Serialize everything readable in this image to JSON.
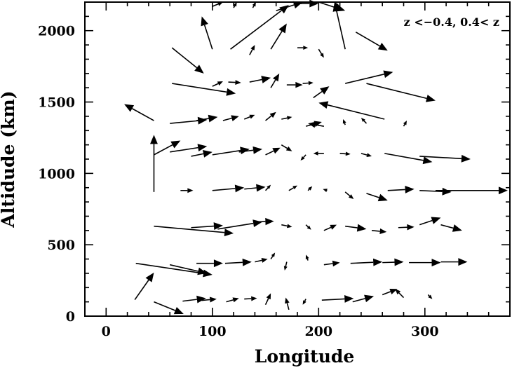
{
  "chart_data": {
    "type": "vector-field",
    "xlabel": "Longitude",
    "ylabel": "Altidude (km)",
    "annotation": "z <−0.4, 0.4< z",
    "xlim": [
      -20,
      380
    ],
    "ylim": [
      0,
      2200
    ],
    "xticks": [
      0,
      100,
      200,
      300
    ],
    "yticks": [
      0,
      500,
      1000,
      1500,
      2000
    ],
    "grid": false,
    "vectors": [
      {
        "x": 27,
        "y": 115,
        "dx": 18,
        "dy": 190
      },
      {
        "x": 45,
        "y": 100,
        "dx": 28,
        "dy": -85
      },
      {
        "x": 72,
        "y": 105,
        "dx": 22,
        "dy": 20
      },
      {
        "x": 90,
        "y": 110,
        "dx": 14,
        "dy": 10
      },
      {
        "x": 113,
        "y": 100,
        "dx": 12,
        "dy": 25
      },
      {
        "x": 130,
        "y": 120,
        "dx": 12,
        "dy": 5
      },
      {
        "x": 150,
        "y": 80,
        "dx": 5,
        "dy": 80
      },
      {
        "x": 172,
        "y": 45,
        "dx": -3,
        "dy": 85
      },
      {
        "x": 188,
        "y": 120,
        "dx": -3,
        "dy": -40
      },
      {
        "x": 203,
        "y": 112,
        "dx": 30,
        "dy": 12
      },
      {
        "x": 232,
        "y": 100,
        "dx": 20,
        "dy": 40
      },
      {
        "x": 260,
        "y": 150,
        "dx": 14,
        "dy": 40
      },
      {
        "x": 280,
        "y": 130,
        "dx": -8,
        "dy": 60
      },
      {
        "x": 303,
        "y": 150,
        "dx": 4,
        "dy": -30
      },
      {
        "x": 28,
        "y": 370,
        "dx": 72,
        "dy": -80
      },
      {
        "x": 60,
        "y": 360,
        "dx": 35,
        "dy": -60
      },
      {
        "x": 85,
        "y": 370,
        "dx": 25,
        "dy": 0
      },
      {
        "x": 112,
        "y": 370,
        "dx": 25,
        "dy": 10
      },
      {
        "x": 140,
        "y": 380,
        "dx": 12,
        "dy": 20
      },
      {
        "x": 155,
        "y": 400,
        "dx": 4,
        "dy": 45
      },
      {
        "x": 170,
        "y": 380,
        "dx": -2,
        "dy": -60
      },
      {
        "x": 190,
        "y": 390,
        "dx": -2,
        "dy": 40
      },
      {
        "x": 205,
        "y": 360,
        "dx": 15,
        "dy": 15
      },
      {
        "x": 230,
        "y": 370,
        "dx": 30,
        "dy": 10
      },
      {
        "x": 260,
        "y": 375,
        "dx": 20,
        "dy": 5
      },
      {
        "x": 285,
        "y": 375,
        "dx": 30,
        "dy": 0
      },
      {
        "x": 315,
        "y": 380,
        "dx": 25,
        "dy": 0
      },
      {
        "x": 45,
        "y": 630,
        "dx": 75,
        "dy": -50
      },
      {
        "x": 80,
        "y": 620,
        "dx": 30,
        "dy": 15
      },
      {
        "x": 105,
        "y": 610,
        "dx": 42,
        "dy": 50
      },
      {
        "x": 140,
        "y": 660,
        "dx": 18,
        "dy": 5
      },
      {
        "x": 165,
        "y": 640,
        "dx": 10,
        "dy": -15
      },
      {
        "x": 188,
        "y": 640,
        "dx": 5,
        "dy": -35
      },
      {
        "x": 205,
        "y": 600,
        "dx": 12,
        "dy": 40
      },
      {
        "x": 225,
        "y": 630,
        "dx": 20,
        "dy": -20
      },
      {
        "x": 250,
        "y": 600,
        "dx": 14,
        "dy": -10
      },
      {
        "x": 275,
        "y": 620,
        "dx": 15,
        "dy": 5
      },
      {
        "x": 295,
        "y": 640,
        "dx": 20,
        "dy": 50
      },
      {
        "x": 315,
        "y": 640,
        "dx": 20,
        "dy": -40
      },
      {
        "x": 45,
        "y": 870,
        "dx": 0,
        "dy": 400
      },
      {
        "x": 45,
        "y": 1130,
        "dx": 25,
        "dy": 100
      },
      {
        "x": 70,
        "y": 880,
        "dx": 12,
        "dy": 0
      },
      {
        "x": 100,
        "y": 880,
        "dx": 30,
        "dy": 20
      },
      {
        "x": 130,
        "y": 890,
        "dx": 20,
        "dy": 15
      },
      {
        "x": 150,
        "y": 880,
        "dx": 5,
        "dy": 40
      },
      {
        "x": 172,
        "y": 880,
        "dx": 8,
        "dy": 35
      },
      {
        "x": 190,
        "y": 880,
        "dx": 4,
        "dy": 30
      },
      {
        "x": 208,
        "y": 880,
        "dx": -4,
        "dy": 10
      },
      {
        "x": 225,
        "y": 870,
        "dx": 8,
        "dy": -50
      },
      {
        "x": 245,
        "y": 860,
        "dx": 20,
        "dy": -50
      },
      {
        "x": 265,
        "y": 880,
        "dx": 25,
        "dy": 10
      },
      {
        "x": 295,
        "y": 880,
        "dx": 30,
        "dy": -10
      },
      {
        "x": 310,
        "y": 880,
        "dx": 68,
        "dy": 0
      },
      {
        "x": 60,
        "y": 1150,
        "dx": 35,
        "dy": 40
      },
      {
        "x": 80,
        "y": 1120,
        "dx": 20,
        "dy": 30
      },
      {
        "x": 100,
        "y": 1130,
        "dx": 35,
        "dy": 40
      },
      {
        "x": 125,
        "y": 1150,
        "dx": 22,
        "dy": 20
      },
      {
        "x": 150,
        "y": 1130,
        "dx": 14,
        "dy": 50
      },
      {
        "x": 165,
        "y": 1200,
        "dx": 10,
        "dy": -45
      },
      {
        "x": 188,
        "y": 1130,
        "dx": -5,
        "dy": -40
      },
      {
        "x": 205,
        "y": 1140,
        "dx": -10,
        "dy": 0
      },
      {
        "x": 220,
        "y": 1140,
        "dx": 10,
        "dy": -5
      },
      {
        "x": 240,
        "y": 1140,
        "dx": 10,
        "dy": -20
      },
      {
        "x": 262,
        "y": 1140,
        "dx": 45,
        "dy": -60
      },
      {
        "x": 295,
        "y": 1120,
        "dx": 48,
        "dy": -20
      },
      {
        "x": 45,
        "y": 1370,
        "dx": -28,
        "dy": 115
      },
      {
        "x": 60,
        "y": 1350,
        "dx": 35,
        "dy": 25
      },
      {
        "x": 85,
        "y": 1370,
        "dx": 20,
        "dy": 25
      },
      {
        "x": 110,
        "y": 1370,
        "dx": 15,
        "dy": 30
      },
      {
        "x": 130,
        "y": 1380,
        "dx": 10,
        "dy": 30
      },
      {
        "x": 150,
        "y": 1370,
        "dx": 10,
        "dy": 60
      },
      {
        "x": 165,
        "y": 1380,
        "dx": 10,
        "dy": 15
      },
      {
        "x": 188,
        "y": 1330,
        "dx": 15,
        "dy": 30
      },
      {
        "x": 205,
        "y": 1330,
        "dx": -15,
        "dy": 20
      },
      {
        "x": 225,
        "y": 1340,
        "dx": -2,
        "dy": 40
      },
      {
        "x": 245,
        "y": 1350,
        "dx": -5,
        "dy": 40
      },
      {
        "x": 262,
        "y": 1380,
        "dx": -62,
        "dy": 115
      },
      {
        "x": 280,
        "y": 1330,
        "dx": 3,
        "dy": 40
      },
      {
        "x": 62,
        "y": 1630,
        "dx": 60,
        "dy": -70
      },
      {
        "x": 100,
        "y": 1610,
        "dx": 10,
        "dy": 35
      },
      {
        "x": 115,
        "y": 1640,
        "dx": 12,
        "dy": -5
      },
      {
        "x": 135,
        "y": 1640,
        "dx": 20,
        "dy": 30
      },
      {
        "x": 155,
        "y": 1600,
        "dx": 8,
        "dy": 100
      },
      {
        "x": 170,
        "y": 1620,
        "dx": 15,
        "dy": 0
      },
      {
        "x": 185,
        "y": 1630,
        "dx": 10,
        "dy": 5
      },
      {
        "x": 195,
        "y": 1530,
        "dx": 15,
        "dy": 80
      },
      {
        "x": 225,
        "y": 1630,
        "dx": 45,
        "dy": 80
      },
      {
        "x": 245,
        "y": 1630,
        "dx": 65,
        "dy": -120
      },
      {
        "x": 62,
        "y": 1880,
        "dx": 30,
        "dy": -180
      },
      {
        "x": 100,
        "y": 1870,
        "dx": -10,
        "dy": 230
      },
      {
        "x": 117,
        "y": 1870,
        "dx": 55,
        "dy": 310
      },
      {
        "x": 135,
        "y": 1830,
        "dx": 5,
        "dy": 70
      },
      {
        "x": 155,
        "y": 1870,
        "dx": 15,
        "dy": 180
      },
      {
        "x": 180,
        "y": 1880,
        "dx": 10,
        "dy": 0
      },
      {
        "x": 200,
        "y": 1870,
        "dx": 5,
        "dy": -60
      },
      {
        "x": 225,
        "y": 1870,
        "dx": -10,
        "dy": 330
      },
      {
        "x": 235,
        "y": 1990,
        "dx": 30,
        "dy": -130
      },
      {
        "x": 100,
        "y": 2170,
        "dx": 10,
        "dy": 60
      },
      {
        "x": 120,
        "y": 2160,
        "dx": 3,
        "dy": 60
      },
      {
        "x": 138,
        "y": 2160,
        "dx": 3,
        "dy": 60
      },
      {
        "x": 160,
        "y": 2140,
        "dx": 25,
        "dy": 60
      },
      {
        "x": 180,
        "y": 2190,
        "dx": 20,
        "dy": 0
      },
      {
        "x": 200,
        "y": 2200,
        "dx": 25,
        "dy": -60
      },
      {
        "x": 220,
        "y": 2150,
        "dx": -5,
        "dy": 60
      }
    ]
  }
}
